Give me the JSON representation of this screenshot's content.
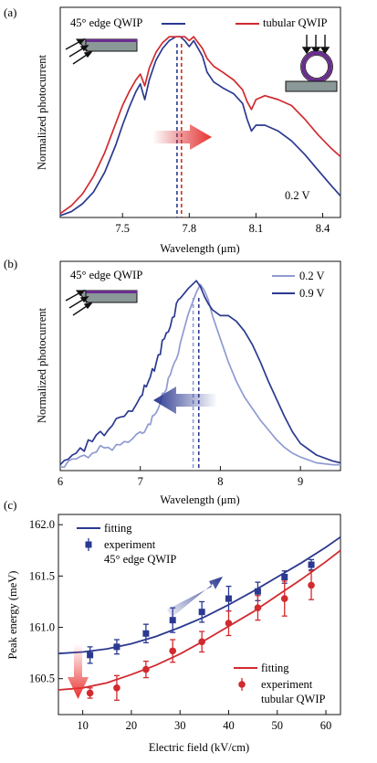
{
  "colors": {
    "blue": "#2b3990",
    "red": "#d12a2f",
    "light_blue": "#8f9bd1",
    "device_body": "#8a9898",
    "device_layer": "#6b2d8f"
  },
  "chart_data": [
    {
      "panel": "(a)",
      "type": "line",
      "xlabel": "Wavelength (μm)",
      "ylabel": "Normalized photocurrent",
      "xlim": [
        7.22,
        8.48
      ],
      "ylim": [
        0,
        1.07
      ],
      "xticks": [
        7.5,
        7.8,
        8.1,
        8.4
      ],
      "xtick_labels": [
        "7.5",
        "7.8",
        "8.1",
        "8.4"
      ],
      "annotation": "0.2 V",
      "peak_markers": [
        7.745,
        7.765
      ],
      "arrow": {
        "direction": "right",
        "from": 7.61,
        "to": 7.73
      },
      "series": [
        {
          "name": "45° edge QWIP",
          "color": "#2b3990",
          "x": [
            7.22,
            7.27,
            7.32,
            7.37,
            7.42,
            7.47,
            7.5,
            7.53,
            7.56,
            7.58,
            7.6,
            7.62,
            7.65,
            7.68,
            7.71,
            7.74,
            7.76,
            7.78,
            7.8,
            7.82,
            7.84,
            7.86,
            7.88,
            7.91,
            7.95,
            8.0,
            8.04,
            8.06,
            8.08,
            8.1,
            8.14,
            8.2,
            8.26,
            8.32,
            8.38,
            8.44,
            8.48
          ],
          "y": [
            0.01,
            0.03,
            0.07,
            0.13,
            0.23,
            0.37,
            0.47,
            0.56,
            0.64,
            0.68,
            0.6,
            0.7,
            0.8,
            0.86,
            0.9,
            0.92,
            0.92,
            0.9,
            0.87,
            0.9,
            0.86,
            0.82,
            0.74,
            0.69,
            0.66,
            0.63,
            0.58,
            0.5,
            0.44,
            0.47,
            0.47,
            0.44,
            0.39,
            0.32,
            0.24,
            0.16,
            0.11
          ]
        },
        {
          "name": "tubular QWIP",
          "color": "#d12a2f",
          "x": [
            7.22,
            7.27,
            7.32,
            7.37,
            7.42,
            7.47,
            7.5,
            7.53,
            7.56,
            7.58,
            7.6,
            7.62,
            7.65,
            7.68,
            7.71,
            7.74,
            7.76,
            7.78,
            7.8,
            7.82,
            7.84,
            7.86,
            7.88,
            7.91,
            7.95,
            8.0,
            8.04,
            8.06,
            8.08,
            8.1,
            8.14,
            8.2,
            8.26,
            8.32,
            8.38,
            8.44,
            8.48
          ],
          "y": [
            0.02,
            0.06,
            0.12,
            0.21,
            0.33,
            0.48,
            0.57,
            0.64,
            0.7,
            0.73,
            0.67,
            0.76,
            0.84,
            0.89,
            0.92,
            0.92,
            0.92,
            0.92,
            0.9,
            0.92,
            0.89,
            0.86,
            0.81,
            0.77,
            0.74,
            0.7,
            0.65,
            0.59,
            0.55,
            0.6,
            0.62,
            0.6,
            0.57,
            0.5,
            0.42,
            0.35,
            0.31
          ]
        }
      ]
    },
    {
      "panel": "(b)",
      "type": "line",
      "xlabel": "Wavelength (μm)",
      "ylabel": "Normalized photocurrent",
      "xlim": [
        6.0,
        9.5
      ],
      "ylim": [
        0,
        1.08
      ],
      "xticks": [
        6,
        7,
        8,
        9
      ],
      "xtick_labels": [
        "6",
        "7",
        "8",
        "9"
      ],
      "panel_label": "45° edge QWIP",
      "peak_markers": [
        7.66,
        7.73
      ],
      "arrow": {
        "direction": "left",
        "from": 7.97,
        "to": 7.15
      },
      "series": [
        {
          "name": "0.2 V",
          "color": "#8f9bd1",
          "x": [
            6.0,
            6.2,
            6.4,
            6.6,
            6.8,
            7.0,
            7.1,
            7.2,
            7.3,
            7.4,
            7.5,
            7.6,
            7.7,
            7.75,
            7.8,
            7.85,
            7.9,
            8.0,
            8.1,
            8.2,
            8.3,
            8.4,
            8.5,
            8.6,
            8.7,
            8.8,
            8.9,
            9.0,
            9.2,
            9.4,
            9.5
          ],
          "y": [
            0.02,
            0.06,
            0.09,
            0.12,
            0.15,
            0.2,
            0.24,
            0.3,
            0.4,
            0.53,
            0.66,
            0.81,
            0.92,
            0.96,
            0.93,
            0.88,
            0.8,
            0.68,
            0.56,
            0.46,
            0.38,
            0.32,
            0.26,
            0.21,
            0.16,
            0.12,
            0.09,
            0.07,
            0.04,
            0.03,
            0.03
          ]
        },
        {
          "name": "0.9 V",
          "color": "#2b3990",
          "x": [
            6.0,
            6.2,
            6.4,
            6.6,
            6.8,
            7.0,
            7.1,
            7.2,
            7.3,
            7.4,
            7.5,
            7.6,
            7.7,
            7.75,
            7.8,
            7.85,
            7.9,
            8.0,
            8.1,
            8.2,
            8.3,
            8.4,
            8.5,
            8.6,
            8.7,
            8.8,
            8.9,
            9.0,
            9.2,
            9.4,
            9.5
          ],
          "y": [
            0.03,
            0.09,
            0.15,
            0.21,
            0.28,
            0.38,
            0.46,
            0.56,
            0.68,
            0.79,
            0.89,
            0.94,
            0.98,
            0.95,
            0.9,
            0.86,
            0.83,
            0.8,
            0.8,
            0.77,
            0.72,
            0.65,
            0.56,
            0.46,
            0.37,
            0.28,
            0.2,
            0.14,
            0.08,
            0.05,
            0.04
          ]
        }
      ]
    },
    {
      "panel": "(c)",
      "type": "scatter",
      "xlabel": "Electric field (kV/cm)",
      "ylabel": "Peak energy (meV)",
      "xlim": [
        5,
        63
      ],
      "ylim": [
        160.15,
        162.1
      ],
      "xticks": [
        10,
        20,
        30,
        40,
        50,
        60
      ],
      "xtick_labels": [
        "10",
        "20",
        "30",
        "40",
        "50",
        "60"
      ],
      "yticks": [
        160.5,
        161.0,
        161.5,
        162.0
      ],
      "ytick_labels": [
        "160.5",
        "161.0",
        "161.5",
        "162.0"
      ],
      "legend_top": {
        "fitting": "fitting",
        "experiment": "experiment",
        "device": "45° edge QWIP"
      },
      "legend_bottom": {
        "fitting": "fitting",
        "experiment": "experiment",
        "device": "tubular QWIP"
      },
      "arrow_up": {
        "direction": "up-right"
      },
      "arrow_down": {
        "direction": "down"
      },
      "series": [
        {
          "name": "45° edge QWIP",
          "color": "#2b3990",
          "marker": "square",
          "x": [
            11.5,
            17,
            23,
            28.5,
            34.5,
            40,
            46,
            51.5,
            57
          ],
          "y": [
            160.73,
            160.81,
            160.94,
            161.07,
            161.15,
            161.28,
            161.35,
            161.49,
            161.61
          ],
          "err": [
            0.08,
            0.07,
            0.09,
            0.12,
            0.1,
            0.12,
            0.09,
            0.06,
            0.05
          ]
        },
        {
          "name": "tubular QWIP",
          "color": "#d12a2f",
          "marker": "circle",
          "x": [
            11.5,
            17,
            23,
            28.5,
            34.5,
            40,
            46,
            51.5,
            57
          ],
          "y": [
            160.36,
            160.41,
            160.59,
            160.77,
            160.86,
            161.04,
            161.19,
            161.28,
            161.41
          ],
          "err": [
            0.05,
            0.12,
            0.08,
            0.11,
            0.1,
            0.12,
            0.12,
            0.17,
            0.14
          ]
        },
        {
          "name": "fitting (45° edge QWIP)",
          "color": "#2b3990",
          "type": "line",
          "x": [
            5,
            10,
            15,
            20,
            25,
            30,
            35,
            40,
            45,
            50,
            55,
            60,
            63
          ],
          "y": [
            160.745,
            160.76,
            160.79,
            160.84,
            160.91,
            161.0,
            161.1,
            161.22,
            161.35,
            161.49,
            161.63,
            161.78,
            161.88
          ]
        },
        {
          "name": "fitting (tubular QWIP)",
          "color": "#d12a2f",
          "type": "line",
          "x": [
            5,
            10,
            15,
            20,
            25,
            30,
            35,
            40,
            45,
            50,
            55,
            60,
            63
          ],
          "y": [
            160.39,
            160.41,
            160.46,
            160.54,
            160.63,
            160.74,
            160.87,
            161.01,
            161.15,
            161.31,
            161.47,
            161.64,
            161.75
          ]
        }
      ]
    }
  ]
}
